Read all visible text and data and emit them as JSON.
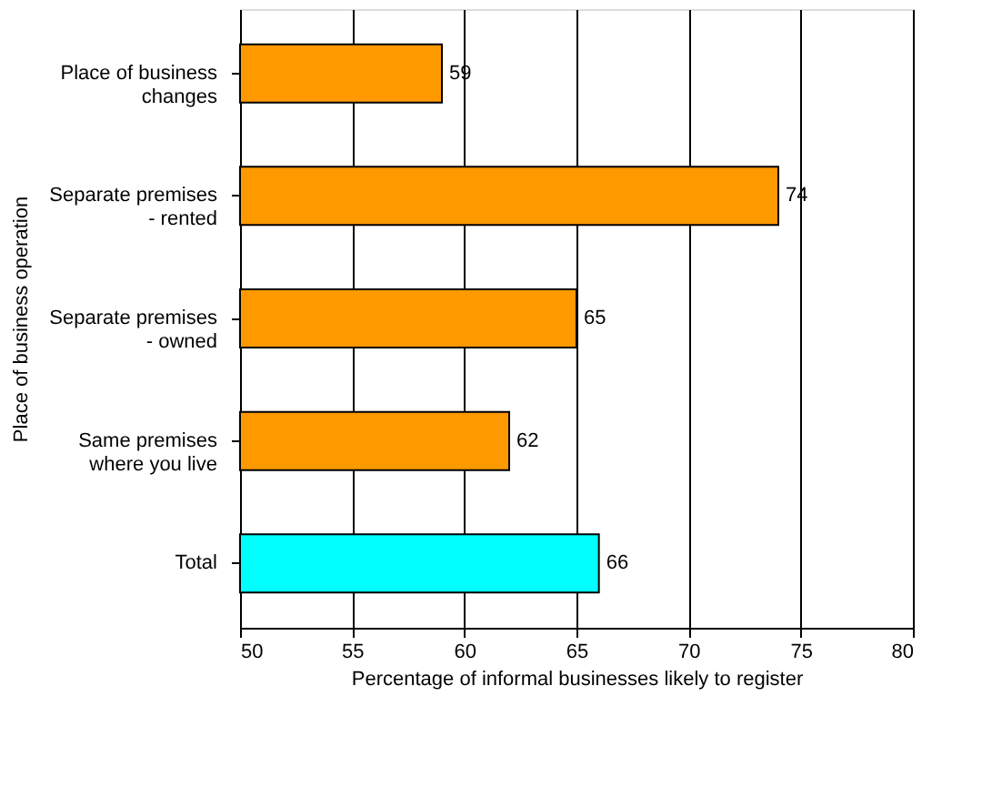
{
  "chart_data": {
    "type": "bar",
    "orientation": "horizontal",
    "categories": [
      "Place of business changes",
      "Separate premises - rented",
      "Separate premises - owned",
      "Same premises where you live",
      "Total"
    ],
    "values": [
      59,
      74,
      65,
      62,
      66
    ],
    "colors": [
      "#ff9900",
      "#ff9900",
      "#ff9900",
      "#ff9900",
      "#00ffff"
    ],
    "xlabel": "Percentage of informal businesses likely to register",
    "ylabel": "Place of business operation",
    "xlim": [
      50,
      80
    ],
    "xticks": [
      50,
      55,
      60,
      65,
      70,
      75,
      80
    ],
    "grid": "x",
    "data_labels": true
  }
}
